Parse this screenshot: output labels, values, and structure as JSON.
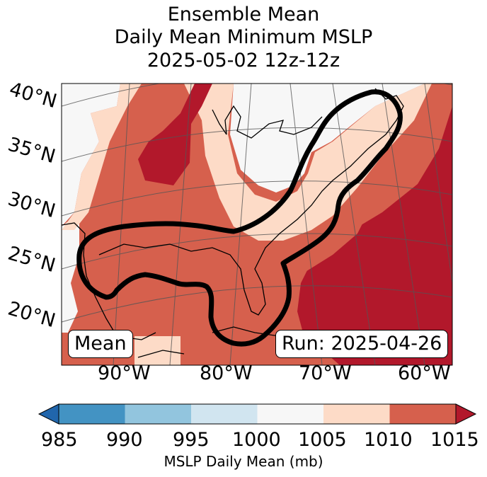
{
  "title": {
    "line1": "Ensemble Mean",
    "line2": "Daily Mean Minimum MSLP",
    "line3": "2025-05-02 12z-12z"
  },
  "map": {
    "lat_labels": [
      "40°N",
      "35°N",
      "30°N",
      "25°N",
      "20°N"
    ],
    "lon_labels": [
      "90°W",
      "80°W",
      "70°W",
      "60°W"
    ],
    "mean_box": "Mean",
    "run_box": "Run: 2025-04-26"
  },
  "colorbar": {
    "ticks": [
      "985",
      "990",
      "995",
      "1000",
      "1005",
      "1010",
      "1015"
    ],
    "label": "MSLP Daily Mean (mb)",
    "colors": [
      "#2166ac",
      "#4393c3",
      "#92c5de",
      "#d1e5f0",
      "#f7f7f7",
      "#fddbc7",
      "#d6604d",
      "#b2182b"
    ]
  }
}
